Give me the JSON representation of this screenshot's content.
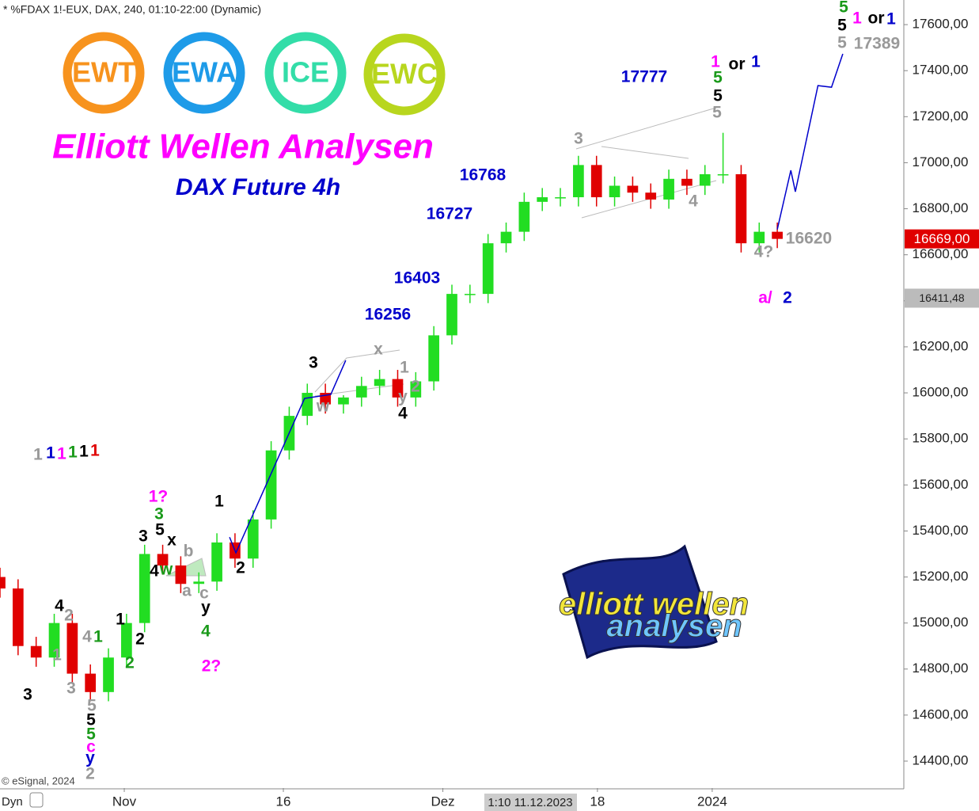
{
  "chart_data": {
    "type": "candlestick",
    "header": "* %FDAX 1!-EUX, DAX, 240, 01:10-22:00 (Dynamic)",
    "title": "Elliott Wellen Analysen",
    "subtitle": "DAX Future 4h",
    "logos": [
      "EWT",
      "EWA",
      "ICE",
      "EWC"
    ],
    "brand": [
      "elliott",
      "wellen",
      "analysen"
    ],
    "copyright": "© eSignal, 2024",
    "mode": "Dyn",
    "cursor_label": "1:10 11.12.2023",
    "up_color": "#22dd22",
    "down_color": "#e00000",
    "x": [
      0,
      4,
      8,
      12,
      16,
      20,
      24,
      28,
      32,
      36,
      40,
      44,
      48,
      52,
      56,
      60,
      64,
      68,
      72,
      76,
      80,
      84,
      88,
      92,
      96,
      100,
      104,
      108,
      112,
      116,
      120,
      124,
      128,
      132,
      136,
      140,
      144,
      148,
      152,
      156,
      160,
      164,
      168,
      172
    ],
    "open": [
      15200,
      15150,
      14900,
      14850,
      15000,
      14780,
      14700,
      14850,
      15000,
      15300,
      15250,
      15170,
      15180,
      15350,
      15280,
      15450,
      15750,
      15900,
      16000,
      15950,
      15980,
      16030,
      16060,
      15980,
      16050,
      16250,
      16430,
      16430,
      16650,
      16700,
      16830,
      16850,
      16850,
      16990,
      16850,
      16900,
      16870,
      16840,
      16930,
      16900,
      16950,
      16950,
      16650,
      16700
    ],
    "high": [
      15240,
      15190,
      14940,
      15040,
      15040,
      14820,
      14890,
      15040,
      15340,
      15340,
      15290,
      15220,
      15390,
      15390,
      15490,
      15790,
      15940,
      16040,
      16040,
      15990,
      16070,
      16100,
      16100,
      16090,
      16290,
      16470,
      16470,
      16690,
      16740,
      16870,
      16890,
      16890,
      17030,
      17030,
      16940,
      16940,
      16910,
      16970,
      16970,
      16990,
      17130,
      16990,
      16740,
      16740
    ],
    "low": [
      15110,
      14860,
      14810,
      14810,
      14740,
      14660,
      14660,
      14810,
      14960,
      15210,
      15130,
      15130,
      15140,
      15240,
      15240,
      15410,
      15710,
      15860,
      15910,
      15910,
      15940,
      15990,
      15940,
      15940,
      16010,
      16210,
      16390,
      16390,
      16610,
      16660,
      16790,
      16810,
      16810,
      16810,
      16810,
      16830,
      16800,
      16800,
      16860,
      16860,
      16910,
      16610,
      16610,
      16629
    ],
    "close": [
      15150,
      14900,
      14850,
      15000,
      14780,
      14700,
      14850,
      15000,
      15300,
      15250,
      15170,
      15180,
      15350,
      15280,
      15450,
      15750,
      15900,
      16000,
      15950,
      15980,
      16030,
      16060,
      15980,
      16050,
      16250,
      16430,
      16430,
      16650,
      16700,
      16830,
      16850,
      16850,
      16990,
      16850,
      16900,
      16870,
      16840,
      16930,
      16900,
      16950,
      16950,
      16650,
      16700,
      16669
    ],
    "projections": [
      {
        "color": "#0000cc",
        "x": [
          50.8,
          52.2,
          67.4,
          73.2,
          76.5
        ],
        "values": [
          15373,
          15305,
          15976,
          15993,
          16141
        ]
      },
      {
        "color": "#0000cc",
        "x": [
          172,
          175,
          176,
          181,
          184,
          186.5
        ],
        "values": [
          16710,
          16967,
          16874,
          17335,
          17328,
          17473
        ]
      }
    ],
    "price_tags": [
      {
        "value": 16669,
        "label": "16669,00",
        "color": "#e00000"
      },
      {
        "value": 16411.48,
        "label": "16411,48",
        "color": "#bbbbbb"
      }
    ],
    "xlim": [
      0,
      200
    ],
    "ylim": [
      14283,
      17707
    ],
    "xticks": [
      {
        "value": 27.5,
        "label": "Nov"
      },
      {
        "value": 62.7,
        "label": "16"
      },
      {
        "value": 98,
        "label": "Dez"
      },
      {
        "value": 132.2,
        "label": "18"
      },
      {
        "value": 157.6,
        "label": "2024"
      }
    ],
    "yticks": [
      {
        "value": 14400,
        "label": "14400,00"
      },
      {
        "value": 14600,
        "label": "14600,00"
      },
      {
        "value": 14800,
        "label": "14800,00"
      },
      {
        "value": 15000,
        "label": "15000,00"
      },
      {
        "value": 15200,
        "label": "15200,00"
      },
      {
        "value": 15400,
        "label": "15400,00"
      },
      {
        "value": 15600,
        "label": "15600,00"
      },
      {
        "value": 15800,
        "label": "15800,00"
      },
      {
        "value": 16000,
        "label": "16000,00"
      },
      {
        "value": 16200,
        "label": "16200,00"
      },
      {
        "value": 16400,
        "label": "16400,00"
      },
      {
        "value": 16600,
        "label": "16600,00"
      },
      {
        "value": 16800,
        "label": "16800,00"
      },
      {
        "value": 17000,
        "label": "17000,00"
      },
      {
        "value": 17200,
        "label": "17200,00"
      },
      {
        "value": 17400,
        "label": "17400,00"
      },
      {
        "value": 17600,
        "label": "17600,00"
      }
    ],
    "grid": false,
    "annotations": [
      {
        "text": "1",
        "color": "#999999"
      },
      {
        "text": "1",
        "color": "#0000cc"
      },
      {
        "text": "1",
        "color": "#ff00ff"
      },
      {
        "text": "1",
        "color": "#1a9a1a"
      },
      {
        "text": "1",
        "color": "#000000"
      },
      {
        "text": "1",
        "color": "#e00000"
      },
      {
        "text": "3",
        "color": "#000000"
      },
      {
        "text": "4",
        "color": "#000000"
      },
      {
        "text": "2",
        "color": "#999999"
      },
      {
        "text": "1",
        "color": "#999999"
      },
      {
        "text": "3",
        "color": "#999999"
      },
      {
        "text": "4",
        "color": "#999999"
      },
      {
        "text": "1",
        "color": "#1a9a1a"
      },
      {
        "text": "5",
        "color": "#999999"
      },
      {
        "text": "5",
        "color": "#000000"
      },
      {
        "text": "5",
        "color": "#1a9a1a"
      },
      {
        "text": "c",
        "color": "#ff00ff"
      },
      {
        "text": "y",
        "color": "#0000cc"
      },
      {
        "text": "2",
        "color": "#999999"
      },
      {
        "text": "1",
        "color": "#000000"
      },
      {
        "text": "2",
        "color": "#000000"
      },
      {
        "text": "2",
        "color": "#1a9a1a"
      },
      {
        "text": "3",
        "color": "#000000"
      },
      {
        "text": "5",
        "color": "#000000"
      },
      {
        "text": "x",
        "color": "#000000"
      },
      {
        "text": "4",
        "color": "#000000"
      },
      {
        "text": "w",
        "color": "#1a9a1a"
      },
      {
        "text": "b",
        "color": "#999999"
      },
      {
        "text": "a",
        "color": "#999999"
      },
      {
        "text": "c",
        "color": "#999999"
      },
      {
        "text": "y",
        "color": "#000000"
      },
      {
        "text": "4",
        "color": "#1a9a1a"
      },
      {
        "text": "1?",
        "color": "#ff00ff"
      },
      {
        "text": "3",
        "color": "#1a9a1a"
      },
      {
        "text": "2?",
        "color": "#ff00ff"
      },
      {
        "text": "1",
        "color": "#000000"
      },
      {
        "text": "2",
        "color": "#000000"
      },
      {
        "text": "3",
        "color": "#000000"
      },
      {
        "text": "w",
        "color": "#999999"
      },
      {
        "text": "x",
        "color": "#999999"
      },
      {
        "text": "1",
        "color": "#999999"
      },
      {
        "text": "2",
        "color": "#999999"
      },
      {
        "text": "y",
        "color": "#999999"
      },
      {
        "text": "4",
        "color": "#000000"
      },
      {
        "text": "16256",
        "color": "#0000cc"
      },
      {
        "text": "16403",
        "color": "#0000cc"
      },
      {
        "text": "16727",
        "color": "#0000cc"
      },
      {
        "text": "16768",
        "color": "#0000cc"
      },
      {
        "text": "17777",
        "color": "#0000cc"
      },
      {
        "text": "3",
        "color": "#999999"
      },
      {
        "text": "4",
        "color": "#999999"
      },
      {
        "text": "5",
        "color": "#999999"
      },
      {
        "text": "5",
        "color": "#000000"
      },
      {
        "text": "5",
        "color": "#1a9a1a"
      },
      {
        "text": "1",
        "color": "#ff00ff"
      },
      {
        "text": "or",
        "color": "#000000"
      },
      {
        "text": "1",
        "color": "#0000cc"
      },
      {
        "text": "16620",
        "color": "#999999"
      },
      {
        "text": "4?",
        "color": "#999999"
      },
      {
        "text": "a/",
        "color": "#ff00ff"
      },
      {
        "text": "2",
        "color": "#0000cc"
      },
      {
        "text": "5",
        "color": "#1a9a1a"
      },
      {
        "text": "1",
        "color": "#ff00ff"
      },
      {
        "text": "or",
        "color": "#000000"
      },
      {
        "text": "1",
        "color": "#0000cc"
      },
      {
        "text": "5",
        "color": "#000000"
      },
      {
        "text": "5",
        "color": "#999999"
      },
      {
        "text": "17389",
        "color": "#999999"
      }
    ]
  }
}
